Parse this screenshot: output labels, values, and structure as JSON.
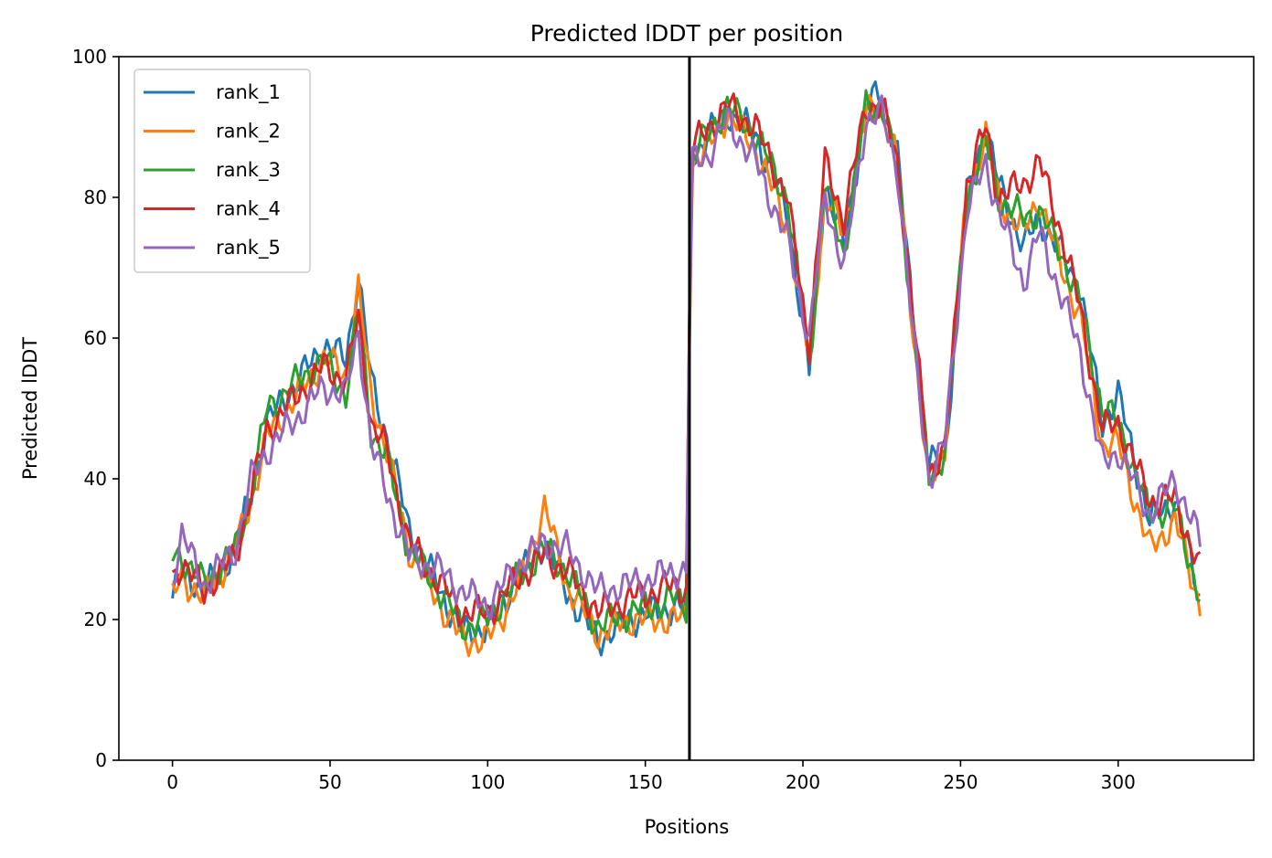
{
  "chart_data": {
    "type": "line",
    "title": "Predicted lDDT per position",
    "xlabel": "Positions",
    "ylabel": "Predicted lDDT",
    "xlim": [
      -17,
      343
    ],
    "ylim": [
      0,
      100
    ],
    "x_ticks": [
      0,
      50,
      100,
      150,
      200,
      250,
      300
    ],
    "y_ticks": [
      0,
      20,
      40,
      60,
      80,
      100
    ],
    "grid": false,
    "legend": "top-left",
    "vline": 164,
    "n_points": 327,
    "anchor_positions": [
      0,
      3,
      10,
      20,
      25,
      30,
      40,
      48,
      55,
      59,
      63,
      68,
      75,
      85,
      92,
      100,
      110,
      118,
      125,
      135,
      145,
      160,
      163,
      164,
      165,
      170,
      176,
      185,
      195,
      202,
      207,
      213,
      220,
      225,
      230,
      235,
      240,
      245,
      252,
      258,
      262,
      270,
      275,
      282,
      288,
      295,
      300,
      310,
      318,
      326
    ],
    "series": [
      {
        "name": "rank_1",
        "color": "#1f77b4",
        "values": [
          23,
          27,
          24,
          30,
          38,
          48,
          54,
          59,
          57,
          69,
          54,
          46,
          33,
          24,
          18,
          19,
          26,
          31,
          24,
          17,
          20,
          22,
          21,
          62,
          86,
          89,
          92,
          89,
          78,
          55,
          82,
          73,
          93,
          95,
          86,
          63,
          42,
          43,
          80,
          90,
          82,
          73,
          77,
          72,
          67,
          48,
          52,
          34,
          37,
          23
        ]
      },
      {
        "name": "rank_2",
        "color": "#ff7f0e",
        "values": [
          23,
          26,
          23,
          30,
          37,
          46,
          52,
          57,
          55,
          67,
          52,
          44,
          30,
          22,
          17,
          17,
          25,
          36,
          25,
          18,
          20,
          20,
          20,
          60,
          85,
          87,
          92,
          87,
          76,
          57,
          80,
          75,
          92,
          93,
          85,
          61,
          38,
          45,
          80,
          89,
          80,
          75,
          80,
          70,
          63,
          45,
          45,
          30,
          34,
          22
        ]
      },
      {
        "name": "rank_3",
        "color": "#2ca02c",
        "values": [
          29,
          29,
          25,
          30,
          38,
          50,
          54,
          57,
          52,
          64,
          47,
          43,
          30,
          24,
          19,
          20,
          26,
          30,
          27,
          19,
          21,
          23,
          22,
          62,
          86,
          89,
          93,
          89,
          80,
          56,
          82,
          72,
          93,
          93,
          84,
          62,
          40,
          44,
          80,
          88,
          80,
          77,
          78,
          72,
          65,
          50,
          48,
          35,
          36,
          23
        ]
      },
      {
        "name": "rank_4",
        "color": "#d62728",
        "values": [
          26,
          28,
          24,
          29,
          38,
          47,
          52,
          56,
          54,
          63,
          48,
          44,
          31,
          25,
          21,
          21,
          26,
          29,
          27,
          21,
          23,
          25,
          24,
          63,
          87,
          90,
          93,
          90,
          80,
          59,
          85,
          77,
          93,
          93,
          85,
          63,
          41,
          44,
          82,
          90,
          80,
          82,
          85,
          75,
          64,
          47,
          48,
          37,
          37,
          27
        ]
      },
      {
        "name": "rank_5",
        "color": "#9467bd",
        "values": [
          26,
          32,
          25,
          30,
          40,
          44,
          49,
          53,
          52,
          61,
          45,
          38,
          29,
          27,
          24,
          22,
          28,
          31,
          30,
          24,
          25,
          27,
          27,
          60,
          85,
          86,
          91,
          85,
          74,
          60,
          80,
          70,
          91,
          92,
          84,
          60,
          40,
          45,
          78,
          85,
          78,
          68,
          75,
          66,
          58,
          42,
          44,
          35,
          40,
          31
        ]
      }
    ]
  }
}
